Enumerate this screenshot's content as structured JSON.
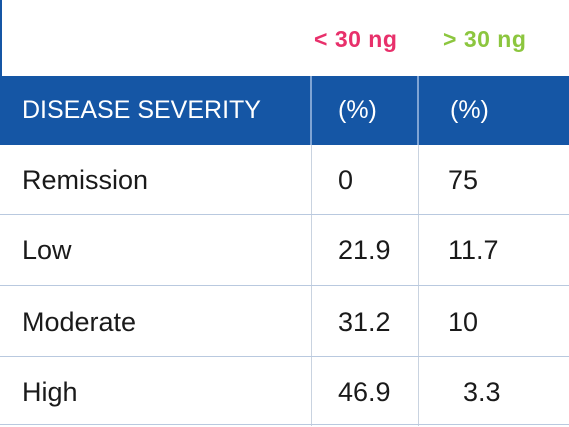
{
  "columns": {
    "lt_label": "< 30 ng",
    "gt_label": "> 30 ng",
    "lt_color": "#e8306b",
    "gt_color": "#8cc63f"
  },
  "header": {
    "severity": "DISEASE SEVERITY",
    "pct_lt": "(%)",
    "pct_gt": "(%)",
    "bg_color": "#1556a5"
  },
  "rows": [
    {
      "name": "Remission",
      "lt": "0",
      "gt": "75"
    },
    {
      "name": "Low",
      "lt": "21.9",
      "gt": "11.7"
    },
    {
      "name": "Moderate",
      "lt": "31.2",
      "gt": "10"
    },
    {
      "name": "High",
      "lt": "46.9",
      "gt": "3.3"
    }
  ]
}
